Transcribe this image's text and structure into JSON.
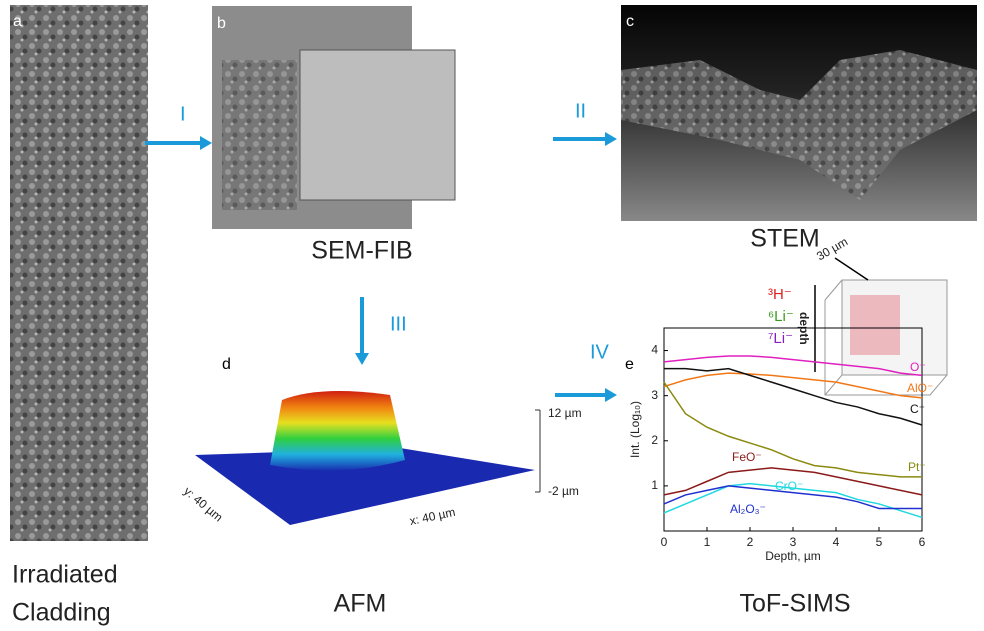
{
  "panel_labels": [
    "a",
    "b",
    "c",
    "d",
    "e"
  ],
  "steps": [
    "I",
    "II",
    "III",
    "IV"
  ],
  "captions": {
    "a": [
      "Irradiated",
      "Cladding"
    ],
    "b": "SEM-FIB",
    "c": "STEM",
    "d": "AFM",
    "e": "ToF-SIMS"
  },
  "afm": {
    "z_top": "12 µm",
    "z_bottom": "-2 µm",
    "x_label": "x: 40 µm",
    "y_label": "y: 40 µm"
  },
  "inset": {
    "species": [
      "³H⁻",
      "⁶Li⁻",
      "⁷Li⁻"
    ],
    "species_colors": [
      "#e02020",
      "#3a9a20",
      "#8a20c0"
    ],
    "depth_label": "depth",
    "width_label": "30 µm"
  },
  "chart_data": {
    "type": "line",
    "xlabel": "Depth, µm",
    "ylabel": "Int. (Log₁₀)",
    "x": [
      0,
      0.5,
      1,
      1.5,
      2,
      2.5,
      3,
      3.5,
      4,
      4.5,
      5,
      5.5,
      6
    ],
    "xlim": [
      0,
      6
    ],
    "ylim": [
      0,
      4.5
    ],
    "xticks": [
      0,
      1,
      2,
      3,
      4,
      5,
      6
    ],
    "yticks": [
      1,
      2,
      3,
      4
    ],
    "series": [
      {
        "name": "O⁻",
        "color": "#e020c0",
        "values": [
          3.75,
          3.8,
          3.85,
          3.88,
          3.88,
          3.85,
          3.8,
          3.75,
          3.7,
          3.65,
          3.6,
          3.5,
          3.45
        ]
      },
      {
        "name": "AlO⁻",
        "color": "#f07818",
        "values": [
          3.2,
          3.35,
          3.45,
          3.5,
          3.48,
          3.45,
          3.4,
          3.35,
          3.3,
          3.2,
          3.1,
          3.0,
          2.95
        ]
      },
      {
        "name": "C⁻",
        "color": "#111111",
        "values": [
          3.6,
          3.6,
          3.55,
          3.6,
          3.45,
          3.3,
          3.15,
          3.0,
          2.85,
          2.75,
          2.6,
          2.5,
          2.35
        ]
      },
      {
        "name": "Pt⁻",
        "color": "#8a8a10",
        "values": [
          3.3,
          2.6,
          2.3,
          2.1,
          1.95,
          1.8,
          1.6,
          1.45,
          1.4,
          1.3,
          1.25,
          1.2,
          1.2
        ]
      },
      {
        "name": "FeO⁻",
        "color": "#8b1a1a",
        "values": [
          0.8,
          0.9,
          1.1,
          1.3,
          1.35,
          1.4,
          1.35,
          1.3,
          1.2,
          1.1,
          1.0,
          0.9,
          0.8
        ]
      },
      {
        "name": "CrO⁻",
        "color": "#20d8e0",
        "values": [
          0.4,
          0.6,
          0.8,
          1.0,
          1.05,
          1.0,
          0.95,
          0.9,
          0.85,
          0.7,
          0.6,
          0.45,
          0.3
        ]
      },
      {
        "name": "Al₂O₃⁻",
        "color": "#2030d0",
        "values": [
          0.6,
          0.8,
          0.9,
          1.0,
          0.95,
          0.9,
          0.85,
          0.8,
          0.75,
          0.65,
          0.5,
          0.5,
          0.5
        ]
      }
    ]
  }
}
